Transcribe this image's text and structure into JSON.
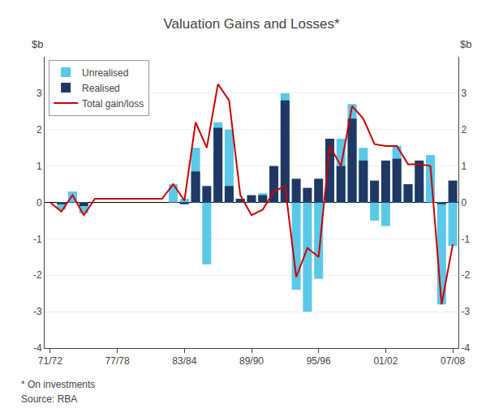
{
  "chart_data": {
    "type": "bar",
    "title": "Valuation Gains and Losses*",
    "ylabel": "$b",
    "y2label": "$b",
    "annotations": [
      "* On investments",
      "Source: RBA"
    ],
    "categories": [
      "71/72",
      null,
      null,
      null,
      null,
      null,
      "77/78",
      null,
      null,
      null,
      null,
      null,
      "83/84",
      null,
      null,
      null,
      null,
      null,
      "89/90",
      null,
      null,
      null,
      null,
      null,
      "95/96",
      null,
      null,
      null,
      null,
      null,
      "01/02",
      null,
      null,
      null,
      null,
      null,
      "07/08"
    ],
    "series": [
      {
        "name": "Unrealised",
        "type": "bar",
        "color": "#5bc8e8",
        "values": [
          0.0,
          -0.2,
          0.3,
          -0.3,
          0.0,
          0.0,
          0.0,
          0.0,
          0.0,
          0.0,
          0.0,
          0.5,
          0.1,
          1.5,
          -1.7,
          2.2,
          2.0,
          0.1,
          0.1,
          0.25,
          0.85,
          3.0,
          -2.4,
          -3.0,
          -2.1,
          1.0,
          1.75,
          2.7,
          1.5,
          -0.5,
          -0.65,
          1.55,
          0.5,
          0.5,
          1.3,
          -2.8,
          -1.2
        ]
      },
      {
        "name": "Realised",
        "type": "bar",
        "color": "#1f3864",
        "values": [
          0.0,
          -0.05,
          0.0,
          -0.1,
          0.0,
          0.0,
          0.0,
          0.0,
          0.0,
          0.0,
          0.0,
          0.0,
          -0.05,
          0.85,
          0.45,
          2.05,
          0.45,
          0.1,
          0.2,
          0.2,
          1.0,
          2.8,
          0.65,
          0.4,
          0.65,
          1.75,
          1.0,
          2.3,
          1.15,
          0.6,
          1.15,
          1.2,
          0.5,
          1.15,
          0.0,
          -0.05,
          0.6
        ]
      },
      {
        "name": "Total gain/loss",
        "type": "line",
        "color": "#cc0000",
        "values": [
          0.0,
          -0.25,
          0.2,
          -0.35,
          0.1,
          0.1,
          0.1,
          0.1,
          0.1,
          0.1,
          0.1,
          0.5,
          0.05,
          2.2,
          1.5,
          3.25,
          2.8,
          0.2,
          -0.35,
          -0.2,
          0.3,
          0.45,
          -2.05,
          -1.25,
          -1.5,
          1.55,
          1.0,
          2.65,
          2.3,
          1.6,
          1.55,
          1.55,
          1.05,
          1.05,
          1.0,
          -2.8,
          -1.15
        ]
      }
    ],
    "ylim": [
      -4,
      4
    ],
    "yticks": [
      -4,
      -3,
      -2,
      -1,
      0,
      1,
      2,
      3
    ],
    "y2lim": [
      -4,
      4
    ],
    "y2ticks": [
      -4,
      -3,
      -2,
      -1,
      0,
      1,
      2,
      3
    ],
    "grid": true,
    "legend": "upper left",
    "stacked": false
  }
}
